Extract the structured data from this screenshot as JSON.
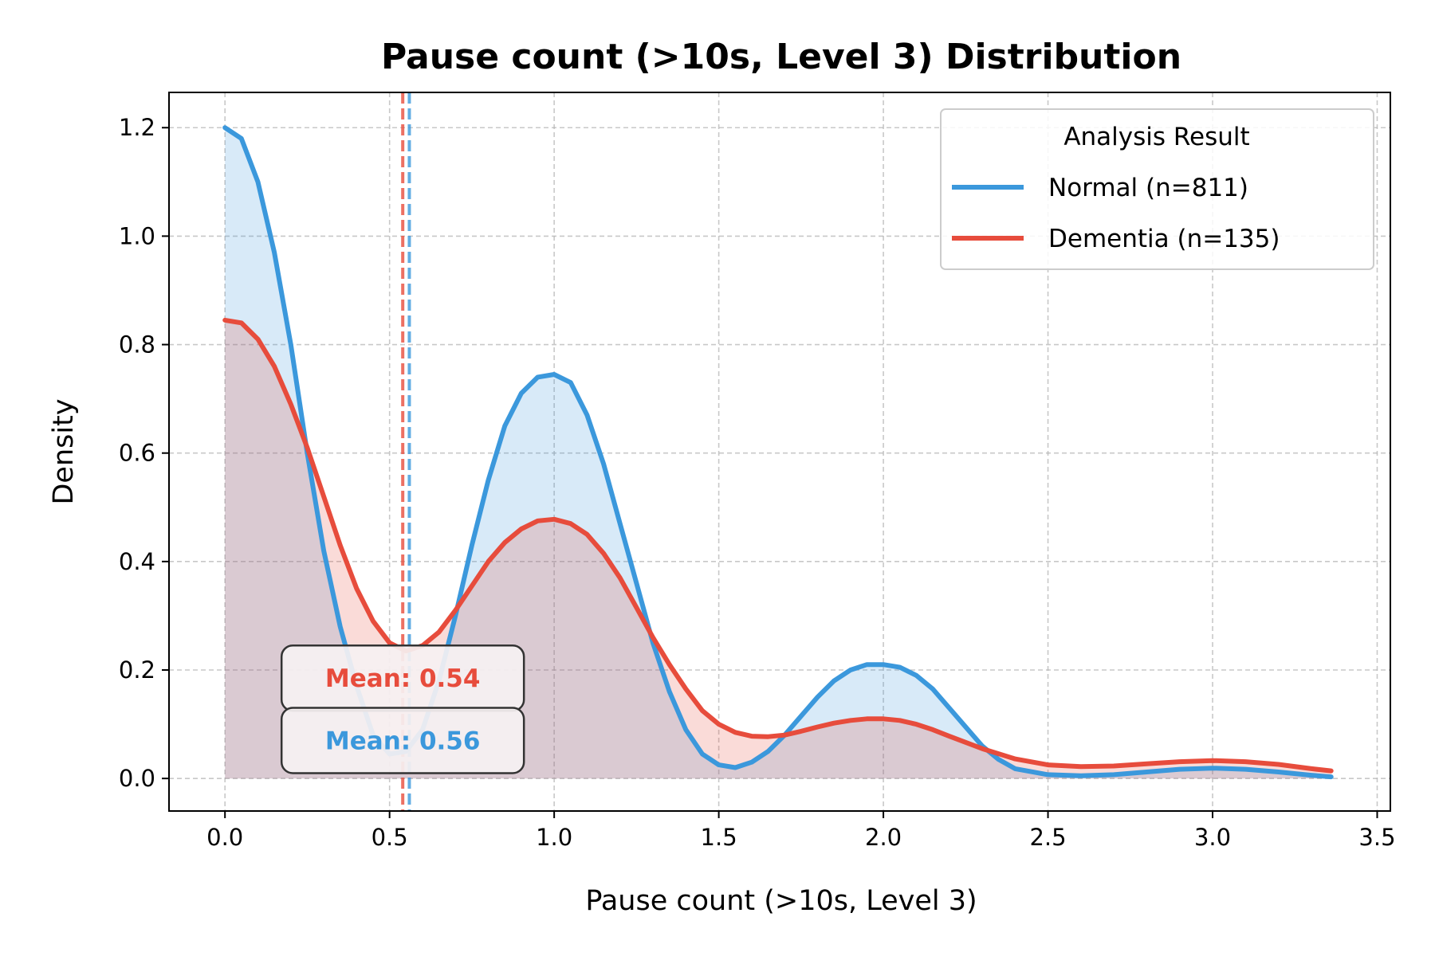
{
  "chart_data": {
    "type": "area",
    "title": "Pause count (>10s, Level 3) Distribution",
    "xlabel": "Pause count (>10s, Level 3)",
    "ylabel": "Density",
    "xlim": [
      -0.17,
      3.54
    ],
    "ylim": [
      -0.06,
      1.265
    ],
    "x_ticks": [
      "0.0",
      "0.5",
      "1.0",
      "1.5",
      "2.0",
      "2.5",
      "3.0",
      "3.5"
    ],
    "y_ticks": [
      "0.0",
      "0.2",
      "0.4",
      "0.6",
      "0.8",
      "1.0",
      "1.2"
    ],
    "grid": true,
    "legend": {
      "title": "Analysis Result",
      "placement": "top-right"
    },
    "series": [
      {
        "name": "Normal (n=811)",
        "color": "#3b98dc",
        "mean": 0.56,
        "mean_label": "Mean: 0.56",
        "points": [
          [
            0.0,
            1.2
          ],
          [
            0.05,
            1.18
          ],
          [
            0.1,
            1.1
          ],
          [
            0.15,
            0.97
          ],
          [
            0.2,
            0.8
          ],
          [
            0.25,
            0.6
          ],
          [
            0.3,
            0.42
          ],
          [
            0.35,
            0.28
          ],
          [
            0.4,
            0.17
          ],
          [
            0.45,
            0.08
          ],
          [
            0.5,
            0.045
          ],
          [
            0.55,
            0.05
          ],
          [
            0.6,
            0.09
          ],
          [
            0.65,
            0.18
          ],
          [
            0.7,
            0.3
          ],
          [
            0.75,
            0.43
          ],
          [
            0.8,
            0.55
          ],
          [
            0.85,
            0.65
          ],
          [
            0.9,
            0.71
          ],
          [
            0.95,
            0.74
          ],
          [
            1.0,
            0.745
          ],
          [
            1.05,
            0.73
          ],
          [
            1.1,
            0.67
          ],
          [
            1.15,
            0.58
          ],
          [
            1.2,
            0.47
          ],
          [
            1.25,
            0.36
          ],
          [
            1.3,
            0.25
          ],
          [
            1.35,
            0.16
          ],
          [
            1.4,
            0.09
          ],
          [
            1.45,
            0.045
          ],
          [
            1.5,
            0.025
          ],
          [
            1.55,
            0.02
          ],
          [
            1.6,
            0.03
          ],
          [
            1.65,
            0.05
          ],
          [
            1.7,
            0.08
          ],
          [
            1.75,
            0.115
          ],
          [
            1.8,
            0.15
          ],
          [
            1.85,
            0.18
          ],
          [
            1.9,
            0.2
          ],
          [
            1.95,
            0.21
          ],
          [
            2.0,
            0.21
          ],
          [
            2.05,
            0.205
          ],
          [
            2.1,
            0.19
          ],
          [
            2.15,
            0.165
          ],
          [
            2.2,
            0.13
          ],
          [
            2.25,
            0.095
          ],
          [
            2.3,
            0.06
          ],
          [
            2.35,
            0.035
          ],
          [
            2.4,
            0.018
          ],
          [
            2.5,
            0.007
          ],
          [
            2.6,
            0.005
          ],
          [
            2.7,
            0.007
          ],
          [
            2.8,
            0.012
          ],
          [
            2.9,
            0.017
          ],
          [
            3.0,
            0.019
          ],
          [
            3.1,
            0.017
          ],
          [
            3.2,
            0.012
          ],
          [
            3.3,
            0.006
          ],
          [
            3.36,
            0.003
          ]
        ]
      },
      {
        "name": "Dementia (n=135)",
        "color": "#e74c3c",
        "mean": 0.54,
        "mean_label": "Mean: 0.54",
        "points": [
          [
            0.0,
            0.845
          ],
          [
            0.05,
            0.84
          ],
          [
            0.1,
            0.81
          ],
          [
            0.15,
            0.76
          ],
          [
            0.2,
            0.69
          ],
          [
            0.25,
            0.61
          ],
          [
            0.3,
            0.52
          ],
          [
            0.35,
            0.43
          ],
          [
            0.4,
            0.35
          ],
          [
            0.45,
            0.29
          ],
          [
            0.5,
            0.25
          ],
          [
            0.55,
            0.235
          ],
          [
            0.6,
            0.245
          ],
          [
            0.65,
            0.27
          ],
          [
            0.7,
            0.31
          ],
          [
            0.75,
            0.355
          ],
          [
            0.8,
            0.4
          ],
          [
            0.85,
            0.435
          ],
          [
            0.9,
            0.46
          ],
          [
            0.95,
            0.475
          ],
          [
            1.0,
            0.478
          ],
          [
            1.05,
            0.47
          ],
          [
            1.1,
            0.45
          ],
          [
            1.15,
            0.415
          ],
          [
            1.2,
            0.37
          ],
          [
            1.25,
            0.315
          ],
          [
            1.3,
            0.26
          ],
          [
            1.35,
            0.21
          ],
          [
            1.4,
            0.165
          ],
          [
            1.45,
            0.125
          ],
          [
            1.5,
            0.1
          ],
          [
            1.55,
            0.085
          ],
          [
            1.6,
            0.078
          ],
          [
            1.65,
            0.077
          ],
          [
            1.7,
            0.08
          ],
          [
            1.75,
            0.087
          ],
          [
            1.8,
            0.095
          ],
          [
            1.85,
            0.102
          ],
          [
            1.9,
            0.107
          ],
          [
            1.95,
            0.11
          ],
          [
            2.0,
            0.11
          ],
          [
            2.05,
            0.107
          ],
          [
            2.1,
            0.1
          ],
          [
            2.15,
            0.09
          ],
          [
            2.2,
            0.078
          ],
          [
            2.3,
            0.055
          ],
          [
            2.4,
            0.036
          ],
          [
            2.5,
            0.025
          ],
          [
            2.6,
            0.022
          ],
          [
            2.7,
            0.023
          ],
          [
            2.8,
            0.027
          ],
          [
            2.9,
            0.031
          ],
          [
            3.0,
            0.033
          ],
          [
            3.1,
            0.031
          ],
          [
            3.2,
            0.026
          ],
          [
            3.3,
            0.018
          ],
          [
            3.36,
            0.014
          ]
        ]
      }
    ]
  }
}
